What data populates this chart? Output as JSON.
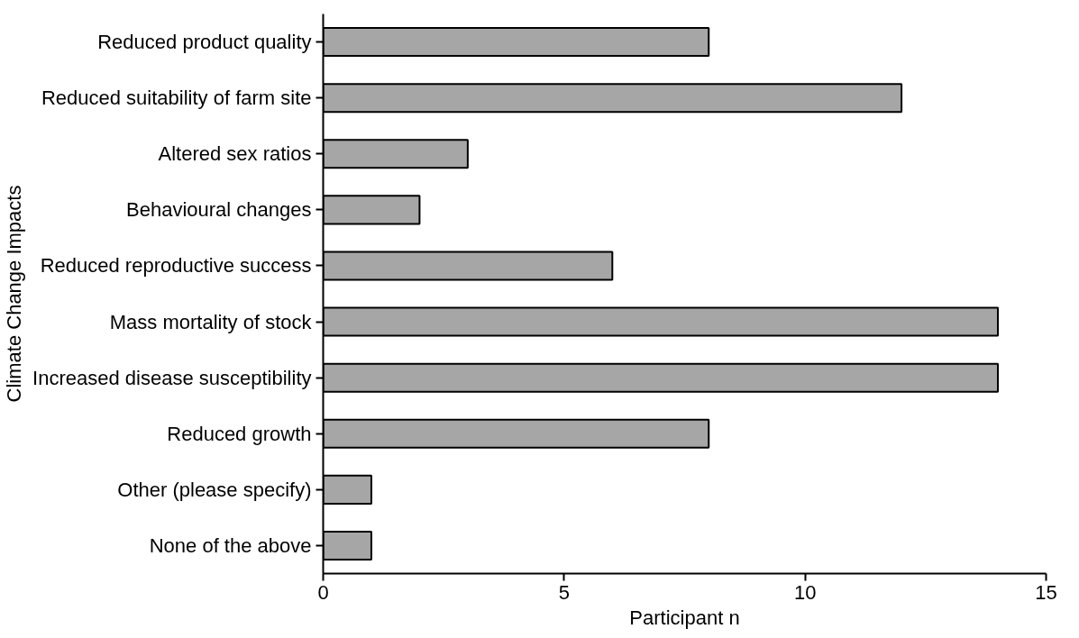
{
  "chart_data": {
    "type": "bar",
    "orientation": "horizontal",
    "xlabel": "Participant n",
    "ylabel": "Climate Change Impacts",
    "categories": [
      "Reduced product quality",
      "Reduced suitability of farm site",
      "Altered sex ratios",
      "Behavioural changes",
      "Reduced reproductive success",
      "Mass mortality of stock",
      "Increased disease susceptibility",
      "Reduced growth",
      "Other (please specify)",
      "None of the above"
    ],
    "values": [
      8,
      12,
      3,
      2,
      6,
      14,
      14,
      8,
      1,
      1
    ],
    "color": "#a6a6a6",
    "xlim": [
      0,
      15
    ],
    "xticks": [
      0,
      5,
      10,
      15
    ],
    "grid": false
  }
}
